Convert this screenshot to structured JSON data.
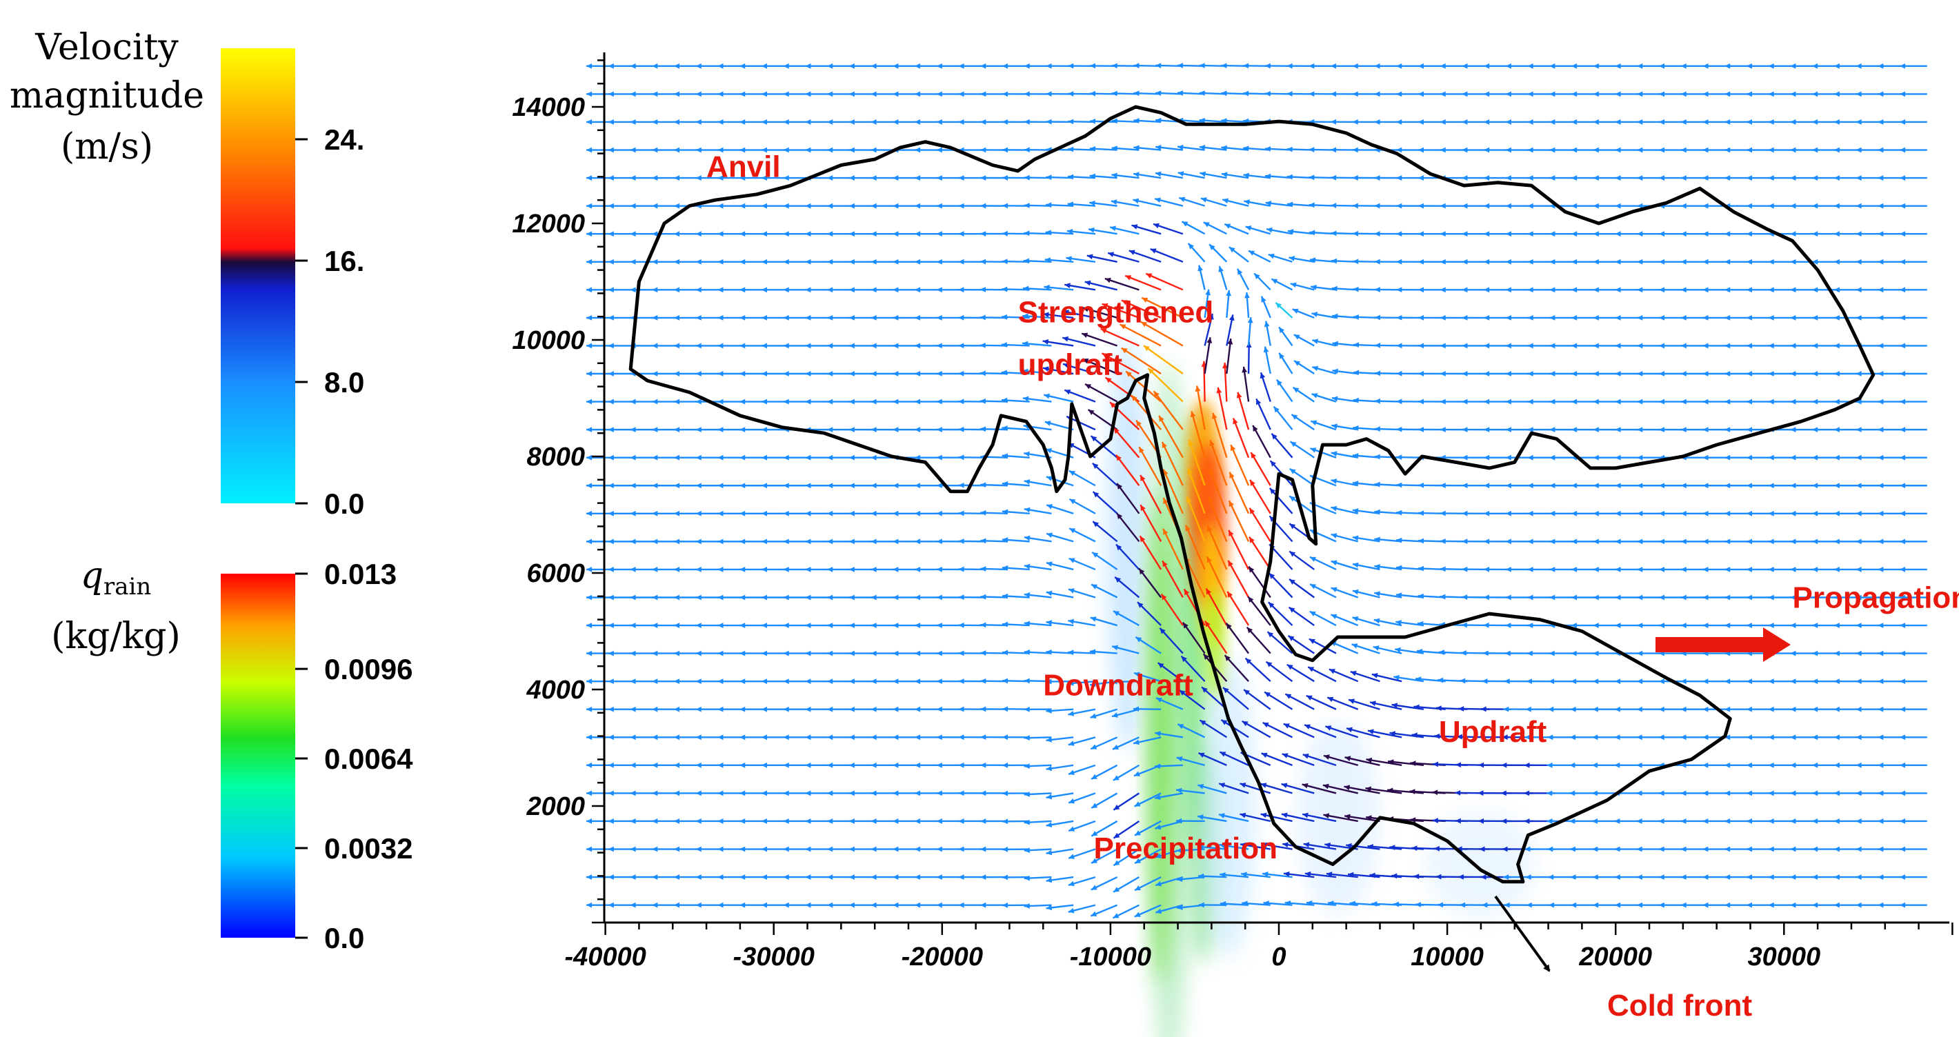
{
  "chart_data": {
    "type": "other",
    "description_kind": "vector-field-with-contour",
    "x_ticks": [
      "-40000",
      "-30000",
      "-20000",
      "-10000",
      "0",
      "10000",
      "20000",
      "30000"
    ],
    "x_tick_values": [
      -40000,
      -30000,
      -20000,
      -10000,
      0,
      10000,
      20000,
      30000
    ],
    "y_ticks": [
      "2000",
      "4000",
      "6000",
      "8000",
      "10000",
      "12000",
      "14000"
    ],
    "y_tick_values": [
      2000,
      4000,
      6000,
      8000,
      10000,
      12000,
      14000
    ],
    "xlim": [
      -40000,
      40000
    ],
    "ylim": [
      0,
      15000
    ],
    "colorbars": [
      {
        "title_lines": [
          "Velocity",
          "magnitude",
          "(m/s)"
        ],
        "ticks": [
          "24.",
          "16.",
          "8.0",
          "0.0"
        ],
        "tick_values": [
          24,
          16,
          8,
          0
        ],
        "range": [
          0,
          30
        ],
        "colors": [
          "#00f0ff",
          "#1a8cff",
          "#1020d0",
          "#1a0a3a",
          "#ff1010",
          "#ff8a00",
          "#ffff00"
        ]
      },
      {
        "title_lines": [
          "q_rain",
          "(kg/kg)"
        ],
        "title_main": "q",
        "title_sub": "rain",
        "title_unit": "(kg/kg)",
        "ticks": [
          "0.013",
          "0.0096",
          "0.0064",
          "0.0032",
          "0.0"
        ],
        "tick_values": [
          0.013,
          0.0096,
          0.0064,
          0.0032,
          0
        ],
        "range": [
          0,
          0.013
        ],
        "colors": [
          "#0000ff",
          "#00c8ff",
          "#00ffa0",
          "#20e020",
          "#c8ff00",
          "#ffa000",
          "#ff0000"
        ]
      }
    ],
    "annotations": [
      {
        "text": "Anvil",
        "x": -34000,
        "y": 12800
      },
      {
        "text": "Strengthened",
        "x": -15500,
        "y": 10300
      },
      {
        "text": "updraft",
        "x": -15500,
        "y": 9400
      },
      {
        "text": "Downdraft",
        "x": -14000,
        "y": 3900
      },
      {
        "text": "Updraft",
        "x": 9500,
        "y": 3100
      },
      {
        "text": "Precipitation",
        "x": -11000,
        "y": 1100
      },
      {
        "text": "Propagation",
        "x": 30500,
        "y": 5400
      },
      {
        "text": "Cold front",
        "x": 19500,
        "y": -1600
      }
    ],
    "cloud_contour": [
      [
        -38500,
        9500
      ],
      [
        -38000,
        11000
      ],
      [
        -36500,
        12000
      ],
      [
        -35000,
        12300
      ],
      [
        -33500,
        12400
      ],
      [
        -31000,
        12500
      ],
      [
        -29000,
        12650
      ],
      [
        -26000,
        13000
      ],
      [
        -24000,
        13100
      ],
      [
        -22500,
        13300
      ],
      [
        -21000,
        13400
      ],
      [
        -19500,
        13300
      ],
      [
        -17000,
        13000
      ],
      [
        -15500,
        12900
      ],
      [
        -14500,
        13100
      ],
      [
        -13000,
        13300
      ],
      [
        -11500,
        13500
      ],
      [
        -10000,
        13800
      ],
      [
        -8500,
        14000
      ],
      [
        -7000,
        13900
      ],
      [
        -5500,
        13700
      ],
      [
        -4000,
        13700
      ],
      [
        -2000,
        13700
      ],
      [
        0,
        13750
      ],
      [
        2000,
        13700
      ],
      [
        4000,
        13550
      ],
      [
        5500,
        13350
      ],
      [
        7000,
        13200
      ],
      [
        9000,
        12850
      ],
      [
        11000,
        12650
      ],
      [
        13000,
        12700
      ],
      [
        15000,
        12650
      ],
      [
        17000,
        12200
      ],
      [
        19000,
        12000
      ],
      [
        21000,
        12200
      ],
      [
        23000,
        12350
      ],
      [
        25000,
        12600
      ],
      [
        27000,
        12200
      ],
      [
        29000,
        11900
      ],
      [
        30500,
        11700
      ],
      [
        32000,
        11200
      ],
      [
        33500,
        10500
      ],
      [
        34500,
        9900
      ],
      [
        35300,
        9400
      ],
      [
        34500,
        9000
      ],
      [
        33000,
        8800
      ],
      [
        31000,
        8600
      ],
      [
        28500,
        8400
      ],
      [
        26000,
        8200
      ],
      [
        24000,
        8000
      ],
      [
        22000,
        7900
      ],
      [
        20000,
        7800
      ],
      [
        18500,
        7800
      ],
      [
        16500,
        8300
      ],
      [
        15000,
        8400
      ],
      [
        14000,
        7900
      ],
      [
        12500,
        7800
      ],
      [
        10500,
        7900
      ],
      [
        8500,
        8000
      ],
      [
        7500,
        7700
      ],
      [
        6500,
        8100
      ],
      [
        5200,
        8300
      ],
      [
        4000,
        8200
      ],
      [
        2600,
        8200
      ],
      [
        2000,
        7500
      ],
      [
        2200,
        6500
      ],
      [
        1800,
        6600
      ],
      [
        1300,
        7100
      ],
      [
        800,
        7600
      ],
      [
        0,
        7700
      ],
      [
        -500,
        6200
      ],
      [
        -1000,
        5500
      ],
      [
        0,
        5000
      ],
      [
        1000,
        4600
      ],
      [
        2000,
        4500
      ],
      [
        3500,
        4900
      ],
      [
        5000,
        4900
      ],
      [
        7500,
        4900
      ],
      [
        10000,
        5100
      ],
      [
        12500,
        5300
      ],
      [
        15500,
        5200
      ],
      [
        18000,
        5000
      ],
      [
        20500,
        4600
      ],
      [
        23000,
        4200
      ],
      [
        25000,
        3900
      ],
      [
        26800,
        3500
      ],
      [
        26500,
        3200
      ],
      [
        24500,
        2800
      ],
      [
        22000,
        2600
      ],
      [
        19500,
        2100
      ],
      [
        16500,
        1700
      ],
      [
        14800,
        1500
      ],
      [
        14200,
        1000
      ],
      [
        14500,
        700
      ],
      [
        13300,
        700
      ],
      [
        12000,
        900
      ],
      [
        10000,
        1400
      ],
      [
        8000,
        1700
      ],
      [
        6000,
        1800
      ],
      [
        4500,
        1300
      ],
      [
        3200,
        1000
      ],
      [
        1000,
        1300
      ],
      [
        -300,
        1700
      ],
      [
        -1200,
        2400
      ],
      [
        -2200,
        3000
      ],
      [
        -3000,
        3500
      ],
      [
        -3800,
        4300
      ],
      [
        -4500,
        5000
      ],
      [
        -5200,
        5800
      ],
      [
        -5800,
        6600
      ],
      [
        -6500,
        7200
      ],
      [
        -7000,
        7800
      ],
      [
        -7400,
        8400
      ],
      [
        -8000,
        9000
      ],
      [
        -7800,
        9400
      ],
      [
        -8500,
        9300
      ],
      [
        -9000,
        9000
      ],
      [
        -9600,
        8900
      ],
      [
        -10000,
        8300
      ],
      [
        -11200,
        8000
      ],
      [
        -12300,
        8900
      ],
      [
        -12500,
        8000
      ],
      [
        -12700,
        7600
      ],
      [
        -13200,
        7400
      ],
      [
        -13500,
        7800
      ],
      [
        -14000,
        8200
      ],
      [
        -15000,
        8600
      ],
      [
        -16500,
        8700
      ],
      [
        -17000,
        8200
      ],
      [
        -17800,
        7800
      ],
      [
        -18500,
        7400
      ],
      [
        -19500,
        7400
      ],
      [
        -21000,
        7900
      ],
      [
        -23000,
        8000
      ],
      [
        -25000,
        8200
      ],
      [
        -27000,
        8400
      ],
      [
        -29500,
        8500
      ],
      [
        -32000,
        8700
      ],
      [
        -35000,
        9100
      ],
      [
        -37500,
        9300
      ],
      [
        -38500,
        9500
      ]
    ]
  }
}
